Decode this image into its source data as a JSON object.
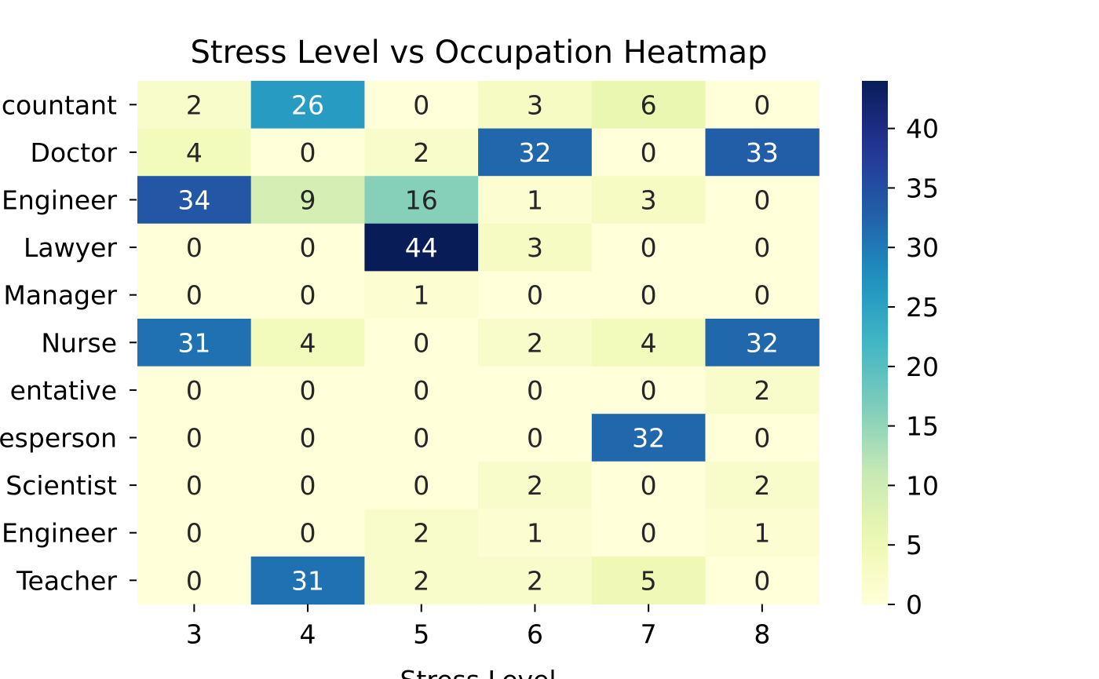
{
  "chart_data": {
    "type": "heatmap",
    "title": "Stress Level vs Occupation Heatmap",
    "xlabel": "Stress Level",
    "ylabel": "",
    "x_categories": [
      "3",
      "4",
      "5",
      "6",
      "7",
      "8"
    ],
    "y_categories": [
      "Accountant",
      "Doctor",
      "Engineer",
      "Lawyer",
      "Manager",
      "Nurse",
      "Sales Representative",
      "Salesperson",
      "Scientist",
      "Software Engineer",
      "Teacher"
    ],
    "y_tick_labels_visible": [
      "countant",
      "Doctor",
      "Engineer",
      "Lawyer",
      "Manager",
      "Nurse",
      "entative",
      "esperson",
      "Scientist",
      "Engineer",
      "Teacher"
    ],
    "values": [
      [
        2,
        26,
        0,
        3,
        6,
        0
      ],
      [
        4,
        0,
        2,
        32,
        0,
        33
      ],
      [
        34,
        9,
        16,
        1,
        3,
        0
      ],
      [
        0,
        0,
        44,
        3,
        0,
        0
      ],
      [
        0,
        0,
        1,
        0,
        0,
        0
      ],
      [
        31,
        4,
        0,
        2,
        4,
        32
      ],
      [
        0,
        0,
        0,
        0,
        0,
        2
      ],
      [
        0,
        0,
        0,
        0,
        32,
        0
      ],
      [
        0,
        0,
        0,
        2,
        0,
        2
      ],
      [
        0,
        0,
        2,
        1,
        0,
        1
      ],
      [
        0,
        31,
        2,
        2,
        5,
        0
      ]
    ],
    "colormap": "YlGnBu",
    "vmin": 0,
    "vmax": 44,
    "colorbar_ticks": [
      "0",
      "5",
      "10",
      "15",
      "20",
      "25",
      "30",
      "35",
      "40"
    ],
    "annotations": true,
    "grid": false
  }
}
